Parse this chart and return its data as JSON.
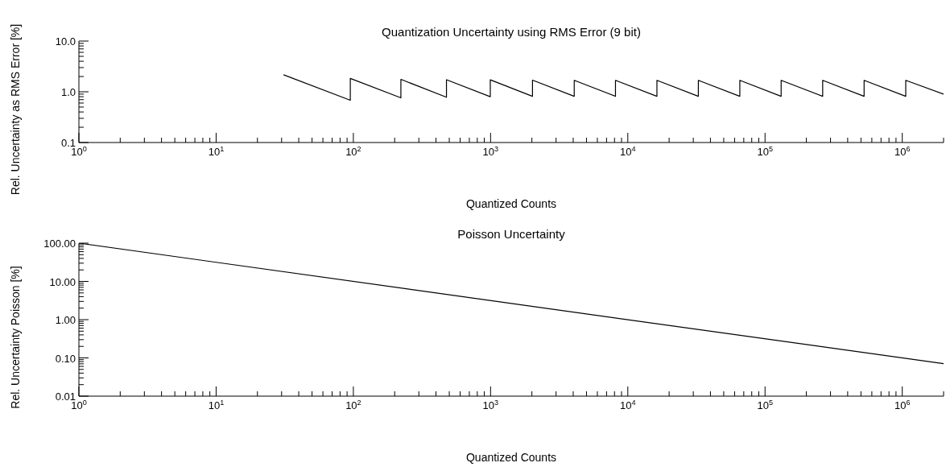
{
  "chart_data": [
    {
      "type": "line",
      "title": "Quantization Uncertainty using RMS Error (9 bit)",
      "xlabel": "Quantized Counts",
      "ylabel": "Rel. Uncertainty as RMS Error [%]",
      "log": "xy",
      "color": "#000000",
      "x": [
        31,
        95,
        95,
        222,
        222,
        477,
        477,
        995,
        995,
        2020,
        2020,
        4070,
        4070,
        8130,
        8130,
        16300,
        16300,
        32660,
        32660,
        65500,
        65500,
        131000,
        131000,
        263000,
        263000,
        527000,
        527000,
        1060000,
        1060000,
        2000000
      ],
      "values": [
        2.16,
        0.68,
        1.84,
        0.76,
        1.76,
        0.78,
        1.73,
        0.8,
        1.72,
        0.815,
        1.7,
        0.815,
        1.68,
        0.815,
        1.68,
        0.815,
        1.68,
        0.815,
        1.68,
        0.815,
        1.68,
        0.815,
        1.68,
        0.815,
        1.68,
        0.815,
        1.68,
        0.815,
        1.68,
        0.9
      ],
      "xlim": [
        1,
        2000000
      ],
      "xticks": [
        {
          "value": 1,
          "label": "10$^{0}$"
        },
        {
          "value": 2,
          "label": null
        },
        {
          "value": 3,
          "label": null
        },
        {
          "value": 4,
          "label": null
        },
        {
          "value": 5,
          "label": null
        },
        {
          "value": 6,
          "label": null
        },
        {
          "value": 7,
          "label": null
        },
        {
          "value": 8,
          "label": null
        },
        {
          "value": 9,
          "label": null
        },
        {
          "value": 10,
          "label": "10$^{1}$"
        },
        {
          "value": 20,
          "label": null
        },
        {
          "value": 30,
          "label": null
        },
        {
          "value": 40,
          "label": null
        },
        {
          "value": 50,
          "label": null
        },
        {
          "value": 60,
          "label": null
        },
        {
          "value": 70,
          "label": null
        },
        {
          "value": 80,
          "label": null
        },
        {
          "value": 90,
          "label": null
        },
        {
          "value": 100,
          "label": "10$^{2}$"
        },
        {
          "value": 200,
          "label": null
        },
        {
          "value": 300,
          "label": null
        },
        {
          "value": 400,
          "label": null
        },
        {
          "value": 500,
          "label": null
        },
        {
          "value": 600,
          "label": null
        },
        {
          "value": 700,
          "label": null
        },
        {
          "value": 800,
          "label": null
        },
        {
          "value": 900,
          "label": null
        },
        {
          "value": 1000,
          "label": "10$^{3}$"
        },
        {
          "value": 2000,
          "label": null
        },
        {
          "value": 3000,
          "label": null
        },
        {
          "value": 4000,
          "label": null
        },
        {
          "value": 5000,
          "label": null
        },
        {
          "value": 6000,
          "label": null
        },
        {
          "value": 7000,
          "label": null
        },
        {
          "value": 8000,
          "label": null
        },
        {
          "value": 9000,
          "label": null
        },
        {
          "value": 10000,
          "label": "10$^{4}$"
        },
        {
          "value": 20000,
          "label": null
        },
        {
          "value": 30000,
          "label": null
        },
        {
          "value": 40000,
          "label": null
        },
        {
          "value": 50000,
          "label": null
        },
        {
          "value": 60000,
          "label": null
        },
        {
          "value": 70000,
          "label": null
        },
        {
          "value": 80000,
          "label": null
        },
        {
          "value": 90000,
          "label": null
        },
        {
          "value": 100000,
          "label": "10$^{5}$"
        },
        {
          "value": 200000,
          "label": null
        },
        {
          "value": 300000,
          "label": null
        },
        {
          "value": 400000,
          "label": null
        },
        {
          "value": 500000,
          "label": null
        },
        {
          "value": 600000,
          "label": null
        },
        {
          "value": 700000,
          "label": null
        },
        {
          "value": 800000,
          "label": null
        },
        {
          "value": 900000,
          "label": null
        },
        {
          "value": 1000000,
          "label": "10$^{6}$"
        },
        {
          "value": 2000000,
          "label": null
        }
      ],
      "ylim": [
        0.1,
        10
      ],
      "yticks": [
        {
          "value": 0.1,
          "label": "0.1"
        },
        {
          "value": 0.2,
          "label": null
        },
        {
          "value": 0.3,
          "label": null
        },
        {
          "value": 0.4,
          "label": null
        },
        {
          "value": 0.5,
          "label": null
        },
        {
          "value": 0.6,
          "label": null
        },
        {
          "value": 0.7,
          "label": null
        },
        {
          "value": 0.8,
          "label": null
        },
        {
          "value": 0.9,
          "label": null
        },
        {
          "value": 1,
          "label": "1.0"
        },
        {
          "value": 2,
          "label": null
        },
        {
          "value": 3,
          "label": null
        },
        {
          "value": 4,
          "label": null
        },
        {
          "value": 5,
          "label": null
        },
        {
          "value": 6,
          "label": null
        },
        {
          "value": 7,
          "label": null
        },
        {
          "value": 8,
          "label": null
        },
        {
          "value": 9,
          "label": null
        },
        {
          "value": 10,
          "label": "10.0"
        }
      ]
    },
    {
      "type": "line",
      "title": "Poisson Uncertainty",
      "xlabel": "Quantized Counts",
      "ylabel": "Rel. Uncertainty Poisson [%]",
      "log": "xy",
      "color": "#000000",
      "x": [
        1,
        2000000
      ],
      "values": [
        100,
        0.0707
      ],
      "xlim": [
        1,
        2000000
      ],
      "xticks": [
        {
          "value": 1,
          "label": "10$^{0}$"
        },
        {
          "value": 2,
          "label": null
        },
        {
          "value": 3,
          "label": null
        },
        {
          "value": 4,
          "label": null
        },
        {
          "value": 5,
          "label": null
        },
        {
          "value": 6,
          "label": null
        },
        {
          "value": 7,
          "label": null
        },
        {
          "value": 8,
          "label": null
        },
        {
          "value": 9,
          "label": null
        },
        {
          "value": 10,
          "label": "10$^{1}$"
        },
        {
          "value": 20,
          "label": null
        },
        {
          "value": 30,
          "label": null
        },
        {
          "value": 40,
          "label": null
        },
        {
          "value": 50,
          "label": null
        },
        {
          "value": 60,
          "label": null
        },
        {
          "value": 70,
          "label": null
        },
        {
          "value": 80,
          "label": null
        },
        {
          "value": 90,
          "label": null
        },
        {
          "value": 100,
          "label": "10$^{2}$"
        },
        {
          "value": 200,
          "label": null
        },
        {
          "value": 300,
          "label": null
        },
        {
          "value": 400,
          "label": null
        },
        {
          "value": 500,
          "label": null
        },
        {
          "value": 600,
          "label": null
        },
        {
          "value": 700,
          "label": null
        },
        {
          "value": 800,
          "label": null
        },
        {
          "value": 900,
          "label": null
        },
        {
          "value": 1000,
          "label": "10$^{3}$"
        },
        {
          "value": 2000,
          "label": null
        },
        {
          "value": 3000,
          "label": null
        },
        {
          "value": 4000,
          "label": null
        },
        {
          "value": 5000,
          "label": null
        },
        {
          "value": 6000,
          "label": null
        },
        {
          "value": 7000,
          "label": null
        },
        {
          "value": 8000,
          "label": null
        },
        {
          "value": 9000,
          "label": null
        },
        {
          "value": 10000,
          "label": "10$^{4}$"
        },
        {
          "value": 20000,
          "label": null
        },
        {
          "value": 30000,
          "label": null
        },
        {
          "value": 40000,
          "label": null
        },
        {
          "value": 50000,
          "label": null
        },
        {
          "value": 60000,
          "label": null
        },
        {
          "value": 70000,
          "label": null
        },
        {
          "value": 80000,
          "label": null
        },
        {
          "value": 90000,
          "label": null
        },
        {
          "value": 100000,
          "label": "10$^{5}$"
        },
        {
          "value": 200000,
          "label": null
        },
        {
          "value": 300000,
          "label": null
        },
        {
          "value": 400000,
          "label": null
        },
        {
          "value": 500000,
          "label": null
        },
        {
          "value": 600000,
          "label": null
        },
        {
          "value": 700000,
          "label": null
        },
        {
          "value": 800000,
          "label": null
        },
        {
          "value": 900000,
          "label": null
        },
        {
          "value": 1000000,
          "label": "10$^{6}$"
        },
        {
          "value": 2000000,
          "label": null
        }
      ],
      "ylim": [
        0.01,
        100
      ],
      "yticks": [
        {
          "value": 0.01,
          "label": "0.01"
        },
        {
          "value": 0.02,
          "label": null
        },
        {
          "value": 0.03,
          "label": null
        },
        {
          "value": 0.04,
          "label": null
        },
        {
          "value": 0.05,
          "label": null
        },
        {
          "value": 0.06,
          "label": null
        },
        {
          "value": 0.07,
          "label": null
        },
        {
          "value": 0.08,
          "label": null
        },
        {
          "value": 0.09,
          "label": null
        },
        {
          "value": 0.1,
          "label": "0.10"
        },
        {
          "value": 0.2,
          "label": null
        },
        {
          "value": 0.3,
          "label": null
        },
        {
          "value": 0.4,
          "label": null
        },
        {
          "value": 0.5,
          "label": null
        },
        {
          "value": 0.6,
          "label": null
        },
        {
          "value": 0.7,
          "label": null
        },
        {
          "value": 0.8,
          "label": null
        },
        {
          "value": 0.9,
          "label": null
        },
        {
          "value": 1,
          "label": "1.00"
        },
        {
          "value": 2,
          "label": null
        },
        {
          "value": 3,
          "label": null
        },
        {
          "value": 4,
          "label": null
        },
        {
          "value": 5,
          "label": null
        },
        {
          "value": 6,
          "label": null
        },
        {
          "value": 7,
          "label": null
        },
        {
          "value": 8,
          "label": null
        },
        {
          "value": 9,
          "label": null
        },
        {
          "value": 10,
          "label": "10.00"
        },
        {
          "value": 20,
          "label": null
        },
        {
          "value": 30,
          "label": null
        },
        {
          "value": 40,
          "label": null
        },
        {
          "value": 50,
          "label": null
        },
        {
          "value": 60,
          "label": null
        },
        {
          "value": 70,
          "label": null
        },
        {
          "value": 80,
          "label": null
        },
        {
          "value": 90,
          "label": null
        },
        {
          "value": 100,
          "label": "100.00"
        }
      ]
    }
  ]
}
